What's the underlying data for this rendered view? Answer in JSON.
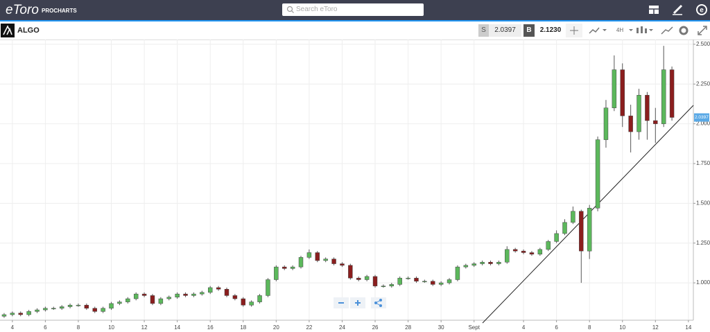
{
  "header": {
    "logo": "eToro",
    "product": "PROCHARTS",
    "search_placeholder": "Search eToro"
  },
  "toolbar": {
    "symbol": "ALGO",
    "sell_label": "S",
    "sell_price": "2.0397",
    "buy_label": "B",
    "buy_price": "2.1230",
    "interval": "4H"
  },
  "chart_data": {
    "type": "candlestick",
    "last_price": 2.0397,
    "up_color": "#5cb85c",
    "down_color": "#8b1e1e",
    "grid": true,
    "ylim": [
      0.765,
      2.53
    ],
    "yticks": [
      {
        "value": 1,
        "label": "1.0000"
      },
      {
        "value": 1.25,
        "label": "1.2500"
      },
      {
        "value": 1.5,
        "label": "1.5000"
      },
      {
        "value": 1.75,
        "label": "1.7500"
      },
      {
        "value": 2,
        "label": "2.0000"
      },
      {
        "value": 2.25,
        "label": "2.2500"
      },
      {
        "value": 2.5,
        "label": "2.5000"
      }
    ],
    "xlim": [
      3.25,
      45.3
    ],
    "xticks": [
      4,
      6,
      8,
      10,
      12,
      14,
      16,
      18,
      20,
      22,
      24,
      26,
      28,
      30,
      {
        "value": 32,
        "label": "Sept"
      },
      {
        "value": 35,
        "label": "4"
      },
      {
        "value": 37,
        "label": "6"
      },
      {
        "value": 39,
        "label": "8"
      },
      {
        "value": 41,
        "label": "10"
      },
      {
        "value": 43,
        "label": "12"
      },
      {
        "value": 45,
        "label": "14"
      }
    ],
    "x": [
      3.5,
      4,
      4.5,
      5,
      5.5,
      6,
      6.5,
      7,
      7.5,
      8,
      8.5,
      9,
      9.5,
      10,
      10.5,
      11,
      11.5,
      12,
      12.5,
      13,
      13.5,
      14,
      14.5,
      15,
      15.5,
      16,
      16.5,
      17,
      17.5,
      18,
      18.5,
      19,
      19.5,
      20,
      20.5,
      21,
      21.5,
      22,
      22.5,
      23,
      23.5,
      24,
      24.5,
      25,
      25.5,
      26,
      26.5,
      27,
      27.5,
      28,
      28.5,
      29,
      29.5,
      30,
      30.5,
      31,
      31.5,
      32,
      32.5,
      33,
      33.5,
      34,
      34.5,
      35,
      35.5,
      36,
      36.5,
      37,
      37.5,
      38,
      38.5,
      39,
      39.5,
      40,
      40.5,
      41,
      41.5,
      42,
      42.5,
      43,
      43.5,
      44
    ],
    "open": [
      0.79,
      0.8,
      0.81,
      0.8,
      0.82,
      0.83,
      0.84,
      0.84,
      0.85,
      0.86,
      0.86,
      0.84,
      0.82,
      0.84,
      0.87,
      0.88,
      0.9,
      0.93,
      0.92,
      0.87,
      0.9,
      0.91,
      0.93,
      0.92,
      0.93,
      0.94,
      0.97,
      0.96,
      0.92,
      0.9,
      0.86,
      0.88,
      0.92,
      1.02,
      1.1,
      1.09,
      1.1,
      1.16,
      1.19,
      1.14,
      1.15,
      1.12,
      1.11,
      1.03,
      1.02,
      1.04,
      0.98,
      0.98,
      0.99,
      1.03,
      1.03,
      1.01,
      1.01,
      0.99,
      1.0,
      1.02,
      1.1,
      1.11,
      1.12,
      1.13,
      1.12,
      1.13,
      1.21,
      1.2,
      1.19,
      1.18,
      1.21,
      1.26,
      1.31,
      1.38,
      1.45,
      1.2,
      1.47,
      1.9,
      2.1,
      2.34,
      2.05,
      1.95,
      2.18,
      2.02,
      2.0,
      2.34
    ],
    "high": [
      0.81,
      0.82,
      0.82,
      0.83,
      0.84,
      0.85,
      0.85,
      0.86,
      0.87,
      0.87,
      0.87,
      0.85,
      0.85,
      0.88,
      0.89,
      0.91,
      0.94,
      0.94,
      0.93,
      0.91,
      0.92,
      0.94,
      0.94,
      0.94,
      0.95,
      0.98,
      0.98,
      0.97,
      0.93,
      0.91,
      0.89,
      0.93,
      1.03,
      1.11,
      1.11,
      1.11,
      1.17,
      1.21,
      1.2,
      1.16,
      1.16,
      1.13,
      1.12,
      1.04,
      1.05,
      1.05,
      0.99,
      1.0,
      1.04,
      1.04,
      1.04,
      1.02,
      1.02,
      1.01,
      1.03,
      1.11,
      1.12,
      1.13,
      1.14,
      1.14,
      1.14,
      1.23,
      1.22,
      1.21,
      1.2,
      1.22,
      1.27,
      1.33,
      1.4,
      1.48,
      1.46,
      1.49,
      1.92,
      2.15,
      2.43,
      2.38,
      2.12,
      2.22,
      2.2,
      2.1,
      2.49,
      2.36
    ],
    "low": [
      0.78,
      0.79,
      0.79,
      0.79,
      0.81,
      0.82,
      0.83,
      0.83,
      0.84,
      0.85,
      0.83,
      0.81,
      0.81,
      0.83,
      0.86,
      0.87,
      0.89,
      0.91,
      0.86,
      0.86,
      0.89,
      0.9,
      0.91,
      0.91,
      0.92,
      0.93,
      0.95,
      0.91,
      0.89,
      0.85,
      0.85,
      0.87,
      0.91,
      1.01,
      1.08,
      1.08,
      1.09,
      1.15,
      1.13,
      1.13,
      1.11,
      1.1,
      1.02,
      1.01,
      1.01,
      0.97,
      0.97,
      0.97,
      0.98,
      1.02,
      1.0,
      1.0,
      0.98,
      0.98,
      0.99,
      1.01,
      1.09,
      1.1,
      1.11,
      1.11,
      1.11,
      1.12,
      1.19,
      1.18,
      1.17,
      1.17,
      1.2,
      1.25,
      1.3,
      1.37,
      1.0,
      1.15,
      1.45,
      1.85,
      2.08,
      1.98,
      1.82,
      1.9,
      1.9,
      1.88,
      1.98,
      2.02
    ],
    "close": [
      0.8,
      0.81,
      0.8,
      0.82,
      0.83,
      0.84,
      0.84,
      0.85,
      0.86,
      0.86,
      0.84,
      0.82,
      0.84,
      0.87,
      0.88,
      0.9,
      0.93,
      0.92,
      0.87,
      0.9,
      0.91,
      0.93,
      0.92,
      0.93,
      0.94,
      0.97,
      0.96,
      0.92,
      0.9,
      0.86,
      0.88,
      0.92,
      1.02,
      1.1,
      1.09,
      1.1,
      1.16,
      1.19,
      1.14,
      1.15,
      1.12,
      1.11,
      1.03,
      1.02,
      1.04,
      0.98,
      0.98,
      0.99,
      1.03,
      1.03,
      1.01,
      1.01,
      0.99,
      1.0,
      1.02,
      1.1,
      1.11,
      1.12,
      1.13,
      1.12,
      1.13,
      1.21,
      1.2,
      1.19,
      1.18,
      1.21,
      1.26,
      1.31,
      1.38,
      1.45,
      1.2,
      1.47,
      1.9,
      2.1,
      2.34,
      2.05,
      1.95,
      2.18,
      2.02,
      2.0,
      2.34,
      2.04
    ]
  }
}
